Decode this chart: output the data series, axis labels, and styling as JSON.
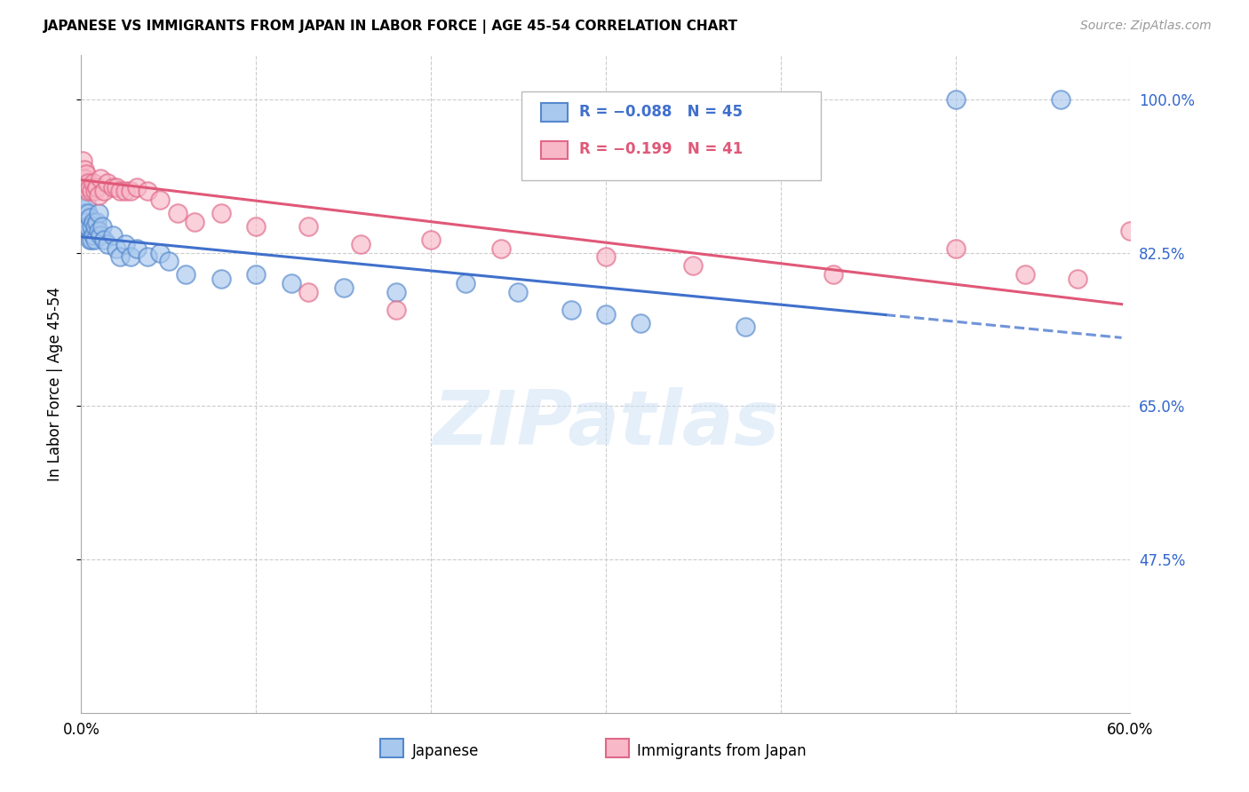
{
  "title": "JAPANESE VS IMMIGRANTS FROM JAPAN IN LABOR FORCE | AGE 45-54 CORRELATION CHART",
  "source": "Source: ZipAtlas.com",
  "ylabel": "In Labor Force | Age 45-54",
  "xlim": [
    0.0,
    0.6
  ],
  "ylim": [
    0.3,
    1.05
  ],
  "xticks": [
    0.0,
    0.1,
    0.2,
    0.3,
    0.4,
    0.5,
    0.6
  ],
  "xticklabels": [
    "0.0%",
    "",
    "",
    "",
    "",
    "",
    "60.0%"
  ],
  "yticks": [
    0.475,
    0.65,
    0.825,
    1.0
  ],
  "yticklabels": [
    "47.5%",
    "65.0%",
    "82.5%",
    "100.0%"
  ],
  "legend_labels": [
    "Japanese",
    "Immigrants from Japan"
  ],
  "legend_r": [
    "R = −0.088",
    "R = −0.199"
  ],
  "legend_n": [
    "N = 45",
    "N = 41"
  ],
  "blue_face": "#a8c8ee",
  "blue_edge": "#5588cc",
  "pink_face": "#f8b8c8",
  "pink_edge": "#e06888",
  "blue_line": "#4070cc",
  "pink_line": "#e05878",
  "watermark": "ZIPatlas",
  "blue_x": [
    0.001,
    0.002,
    0.002,
    0.003,
    0.003,
    0.004,
    0.004,
    0.005,
    0.005,
    0.006,
    0.006,
    0.007,
    0.007,
    0.008,
    0.008,
    0.009,
    0.01,
    0.01,
    0.011,
    0.012,
    0.013,
    0.015,
    0.018,
    0.02,
    0.022,
    0.025,
    0.028,
    0.032,
    0.038,
    0.045,
    0.05,
    0.06,
    0.08,
    0.1,
    0.12,
    0.15,
    0.18,
    0.22,
    0.25,
    0.28,
    0.3,
    0.32,
    0.38,
    0.5,
    0.56
  ],
  "blue_y": [
    0.875,
    0.87,
    0.86,
    0.88,
    0.855,
    0.87,
    0.855,
    0.865,
    0.84,
    0.855,
    0.84,
    0.86,
    0.845,
    0.855,
    0.84,
    0.86,
    0.87,
    0.85,
    0.845,
    0.855,
    0.84,
    0.835,
    0.845,
    0.83,
    0.82,
    0.835,
    0.82,
    0.83,
    0.82,
    0.825,
    0.815,
    0.8,
    0.795,
    0.8,
    0.79,
    0.785,
    0.78,
    0.79,
    0.78,
    0.76,
    0.755,
    0.745,
    0.74,
    1.0,
    1.0
  ],
  "pink_x": [
    0.001,
    0.002,
    0.002,
    0.003,
    0.003,
    0.004,
    0.004,
    0.005,
    0.006,
    0.007,
    0.008,
    0.009,
    0.01,
    0.011,
    0.013,
    0.015,
    0.018,
    0.02,
    0.022,
    0.025,
    0.028,
    0.032,
    0.038,
    0.045,
    0.055,
    0.065,
    0.08,
    0.1,
    0.13,
    0.16,
    0.2,
    0.24,
    0.3,
    0.35,
    0.43,
    0.5,
    0.54,
    0.57,
    0.6,
    0.13,
    0.18
  ],
  "pink_y": [
    0.93,
    0.92,
    0.91,
    0.9,
    0.915,
    0.905,
    0.895,
    0.9,
    0.895,
    0.905,
    0.895,
    0.9,
    0.89,
    0.91,
    0.895,
    0.905,
    0.9,
    0.9,
    0.895,
    0.895,
    0.895,
    0.9,
    0.895,
    0.885,
    0.87,
    0.86,
    0.87,
    0.855,
    0.855,
    0.835,
    0.84,
    0.83,
    0.82,
    0.81,
    0.8,
    0.83,
    0.8,
    0.795,
    0.85,
    0.78,
    0.76
  ]
}
